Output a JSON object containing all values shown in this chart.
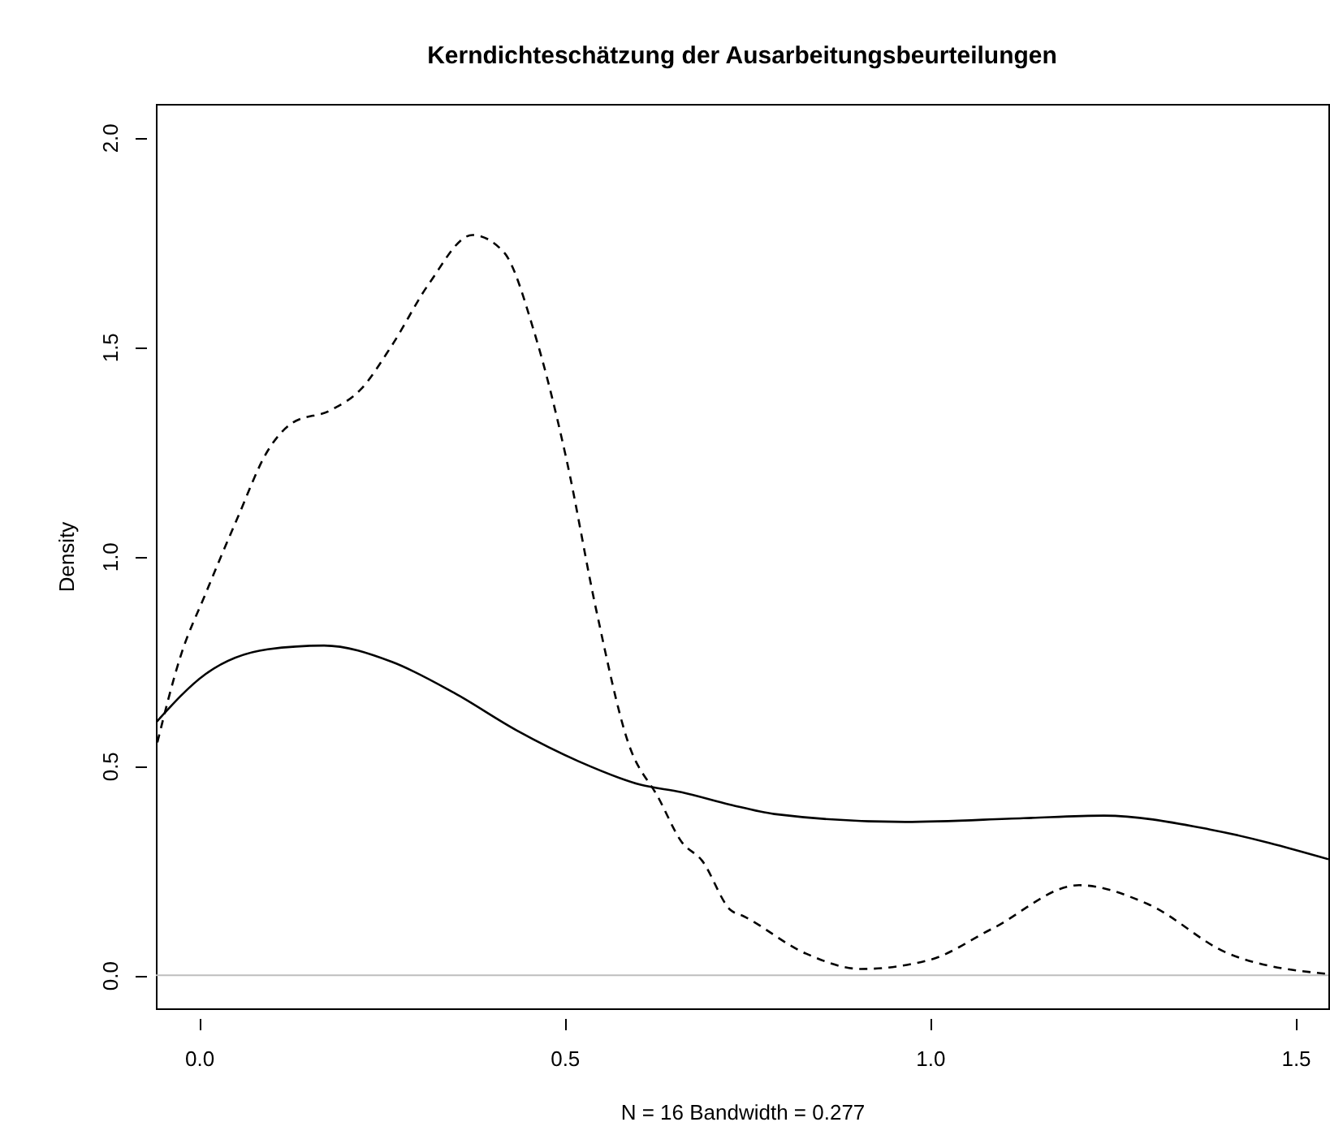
{
  "chart_data": {
    "type": "line",
    "title": "Kerndichteschätzung der Ausarbeitungsbeurteilungen",
    "xlabel": "N = 16   Bandwidth = 0.277",
    "ylabel": "Density",
    "xlim": [
      -0.059,
      1.545
    ],
    "ylim": [
      -0.079,
      2.08
    ],
    "xticks": [
      {
        "value": 0,
        "label": "0.0"
      },
      {
        "value": 0.5,
        "label": "0.5"
      },
      {
        "value": 1,
        "label": "1.0"
      },
      {
        "value": 1.5,
        "label": "1.5"
      }
    ],
    "yticks": [
      {
        "value": 0,
        "label": "0.0"
      },
      {
        "value": 0.5,
        "label": "0.5"
      },
      {
        "value": 1,
        "label": "1.0"
      },
      {
        "value": 1.5,
        "label": "1.5"
      },
      {
        "value": 2,
        "label": "2.0"
      }
    ],
    "grid": false,
    "marker": "none",
    "series": [
      {
        "color": "#000000",
        "line_style": "solid",
        "x": [
          -0.059,
          0.009,
          0.094,
          0.171,
          0.264,
          0.349,
          0.434,
          0.519,
          0.604,
          0.66,
          0.727,
          0.787,
          0.966,
          1.128,
          1.238,
          1.383,
          1.545
        ],
        "values": [
          0.603,
          0.719,
          0.778,
          0.787,
          0.748,
          0.674,
          0.585,
          0.511,
          0.455,
          0.437,
          0.407,
          0.385,
          0.366,
          0.375,
          0.381,
          0.348,
          0.277
        ]
      },
      {
        "color": "#000000",
        "line_style": "dashed",
        "x": [
          -0.057,
          -0.025,
          0.009,
          0.052,
          0.094,
          0.128,
          0.179,
          0.222,
          0.264,
          0.315,
          0.374,
          0.417,
          0.459,
          0.502,
          0.544,
          0.587,
          0.629,
          0.66,
          0.688,
          0.727,
          0.745,
          0.83,
          0.906,
          1.0,
          1.085,
          1.204,
          1.298,
          1.408,
          1.545
        ],
        "values": [
          0.556,
          0.763,
          0.911,
          1.089,
          1.252,
          1.319,
          1.348,
          1.4,
          1.504,
          1.652,
          1.767,
          1.726,
          1.533,
          1.237,
          0.867,
          0.556,
          0.422,
          0.319,
          0.274,
          0.156,
          0.141,
          0.052,
          0.015,
          0.037,
          0.111,
          0.215,
          0.17,
          0.052,
          0.003
        ]
      }
    ],
    "ref_lines": [
      {
        "axis": "y",
        "value": 0,
        "color": "#bebebe"
      }
    ]
  }
}
